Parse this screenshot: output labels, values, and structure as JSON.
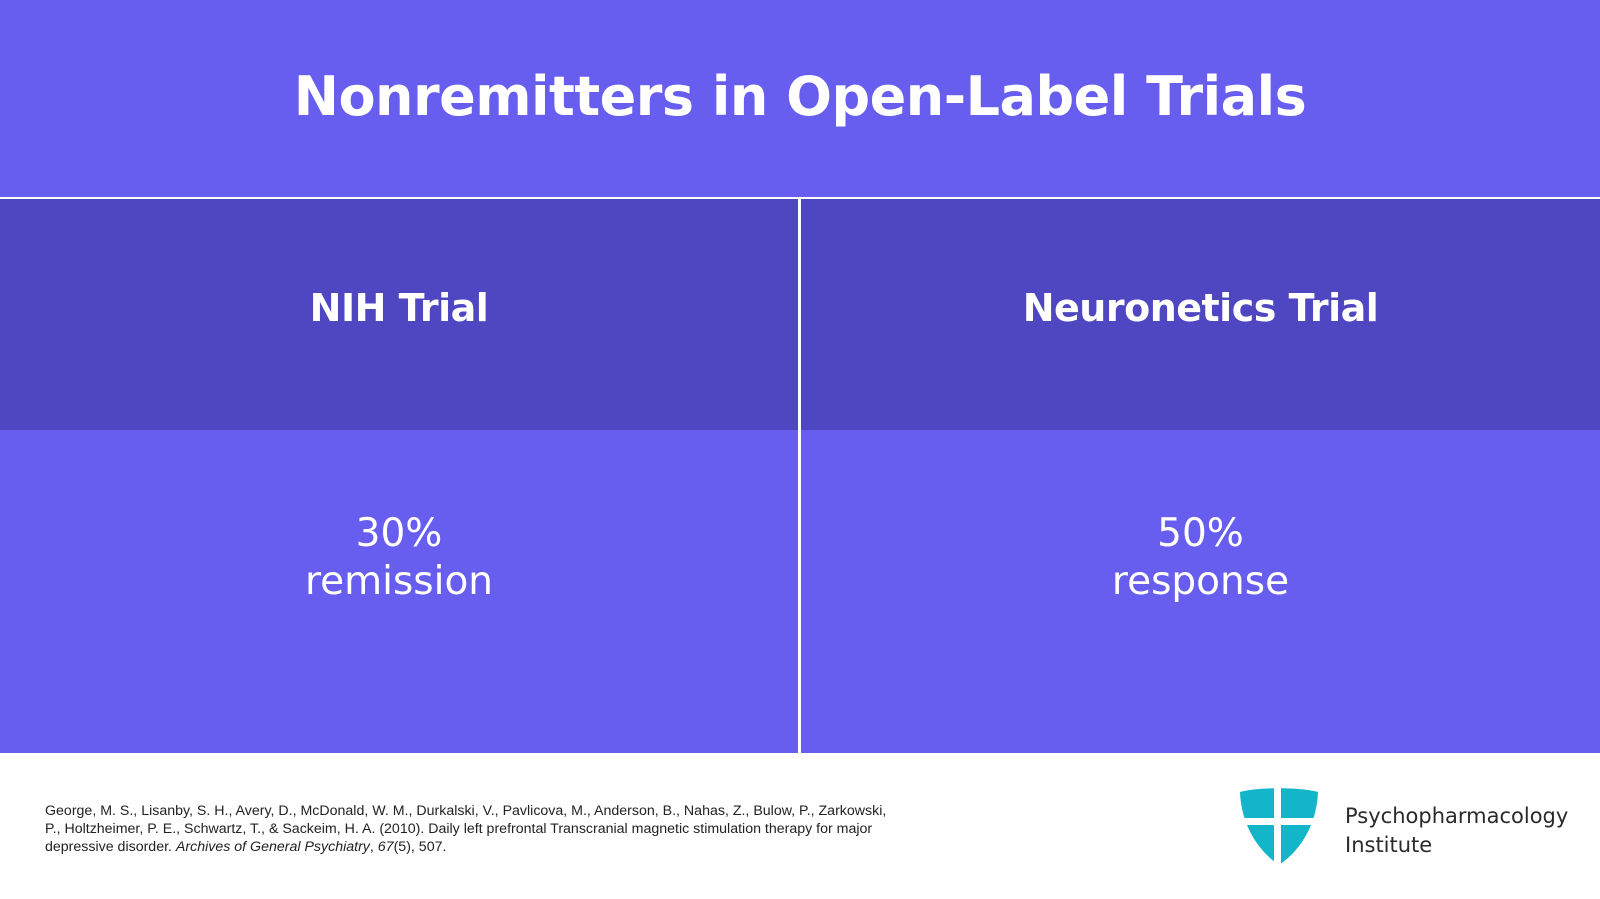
{
  "slide": {
    "title": "Nonremitters in Open-Label Trials"
  },
  "table": {
    "columns": [
      {
        "header": "NIH Trial",
        "value_line1": "30%",
        "value_line2": "remission"
      },
      {
        "header": "Neuronetics Trial",
        "value_line1": "50%",
        "value_line2": "response"
      }
    ]
  },
  "citation": {
    "authors": "George, M. S., Lisanby, S. H., Avery, D., McDonald, W. M., Durkalski, V., Pavlicova, M., Anderson, B., Nahas, Z., Bulow, P., Zarkowski, P., Holtzheimer, P. E., Schwartz, T., & Sackeim, H. A. (2010). Daily left prefrontal Transcranial magnetic stimulation therapy for major depressive disorder. ",
    "journal": "Archives of General Psychiatry",
    "sep": ", ",
    "volume": "67",
    "pages": "(5), 507."
  },
  "brand": {
    "line1": "Psychopharmacology",
    "line2": "Institute",
    "logo_icon": "shield-cross-icon",
    "logo_color": "#13B5C9"
  },
  "colors": {
    "header_bg": "#675DEE",
    "column_header_bg": "#4F46C2",
    "cell_bg": "#675DEE"
  }
}
